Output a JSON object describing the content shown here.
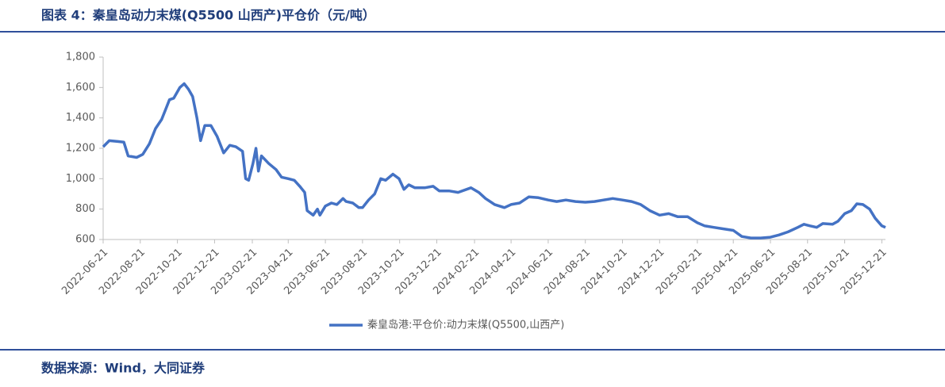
{
  "header": {
    "title": "图表 4：秦皇岛动力末煤(Q5500 山西产)平仓价（元/吨）"
  },
  "chart_data": {
    "type": "line",
    "series": [
      {
        "name": "秦皇岛港:平仓价:动力末煤(Q5500,山西产)",
        "color": "#4472c4",
        "x": [
          "2022-06-21",
          "2022-07-01",
          "2022-07-15",
          "2022-07-25",
          "2022-08-01",
          "2022-08-15",
          "2022-08-25",
          "2022-09-05",
          "2022-09-15",
          "2022-09-25",
          "2022-10-01",
          "2022-10-08",
          "2022-10-15",
          "2022-10-25",
          "2022-11-01",
          "2022-11-08",
          "2022-11-15",
          "2022-11-22",
          "2022-11-28",
          "2022-12-05",
          "2022-12-15",
          "2022-12-25",
          "2023-01-05",
          "2023-01-15",
          "2023-01-25",
          "2023-02-05",
          "2023-02-10",
          "2023-02-15",
          "2023-02-22",
          "2023-02-27",
          "2023-03-03",
          "2023-03-08",
          "2023-03-20",
          "2023-04-01",
          "2023-04-10",
          "2023-04-21",
          "2023-05-01",
          "2023-05-10",
          "2023-05-18",
          "2023-05-22",
          "2023-06-01",
          "2023-06-08",
          "2023-06-12",
          "2023-06-21",
          "2023-07-01",
          "2023-07-10",
          "2023-07-20",
          "2023-07-25",
          "2023-08-05",
          "2023-08-15",
          "2023-08-21",
          "2023-08-31",
          "2023-09-10",
          "2023-09-20",
          "2023-09-28",
          "2023-10-10",
          "2023-10-20",
          "2023-10-28",
          "2023-11-05",
          "2023-11-15",
          "2023-12-01",
          "2023-12-15",
          "2023-12-25",
          "2024-01-10",
          "2024-01-25",
          "2024-02-15",
          "2024-02-28",
          "2024-03-10",
          "2024-03-25",
          "2024-04-10",
          "2024-04-21",
          "2024-05-05",
          "2024-05-20",
          "2024-06-05",
          "2024-06-21",
          "2024-07-05",
          "2024-07-20",
          "2024-08-05",
          "2024-08-21",
          "2024-09-05",
          "2024-09-20",
          "2024-10-05",
          "2024-10-21",
          "2024-11-05",
          "2024-11-20",
          "2024-12-05",
          "2024-12-21",
          "2025-01-05",
          "2025-01-20",
          "2025-02-05",
          "2025-02-21",
          "2025-03-05",
          "2025-03-20",
          "2025-04-05",
          "2025-04-21",
          "2025-05-05",
          "2025-05-20",
          "2025-06-05",
          "2025-06-21",
          "2025-07-05",
          "2025-07-20",
          "2025-08-05",
          "2025-08-15",
          "2025-08-25",
          "2025-09-05",
          "2025-09-15",
          "2025-10-01",
          "2025-10-10",
          "2025-10-21",
          "2025-11-01",
          "2025-11-10",
          "2025-11-20",
          "2025-12-01",
          "2025-12-10",
          "2025-12-21",
          "2025-12-27"
        ],
        "values": [
          1210,
          1250,
          1245,
          1240,
          1150,
          1140,
          1160,
          1230,
          1330,
          1390,
          1450,
          1520,
          1530,
          1600,
          1625,
          1590,
          1540,
          1400,
          1250,
          1350,
          1350,
          1280,
          1170,
          1220,
          1210,
          1180,
          1000,
          990,
          1100,
          1200,
          1050,
          1150,
          1100,
          1060,
          1010,
          1000,
          990,
          950,
          910,
          790,
          760,
          800,
          760,
          820,
          840,
          830,
          870,
          850,
          840,
          810,
          810,
          860,
          900,
          1000,
          990,
          1030,
          1000,
          930,
          960,
          940,
          940,
          950,
          920,
          920,
          910,
          940,
          910,
          870,
          830,
          810,
          830,
          840,
          880,
          875,
          860,
          850,
          860,
          850,
          845,
          850,
          860,
          870,
          860,
          850,
          830,
          790,
          760,
          770,
          750,
          750,
          710,
          690,
          680,
          670,
          660,
          620,
          610,
          610,
          615,
          630,
          650,
          680,
          700,
          690,
          680,
          705,
          700,
          720,
          770,
          790,
          835,
          830,
          800,
          740,
          690,
          680
        ]
      }
    ],
    "xlim": [
      "2022-06-21",
      "2025-12-27"
    ],
    "xticks": [
      "2022-06-21",
      "2022-08-21",
      "2022-10-21",
      "2022-12-21",
      "2023-02-21",
      "2023-04-21",
      "2023-06-21",
      "2023-08-21",
      "2023-10-21",
      "2023-12-21",
      "2024-02-21",
      "2024-04-21",
      "2024-06-21",
      "2024-08-21",
      "2024-10-21",
      "2024-12-21",
      "2025-02-21",
      "2025-04-21",
      "2025-06-21",
      "2025-08-21",
      "2025-10-21",
      "2025-12-21"
    ],
    "ylim": [
      600,
      1800
    ],
    "yticks": [
      600,
      800,
      {
        "value": 1000,
        "label": "1,000"
      },
      {
        "value": 1200,
        "label": "1,200"
      },
      {
        "value": 1400,
        "label": "1,400"
      },
      {
        "value": 1600,
        "label": "1,600"
      },
      {
        "value": 1800,
        "label": "1,800"
      }
    ],
    "legend": "bottom"
  },
  "footer": {
    "source": "数据来源：Wind，大同证券"
  }
}
